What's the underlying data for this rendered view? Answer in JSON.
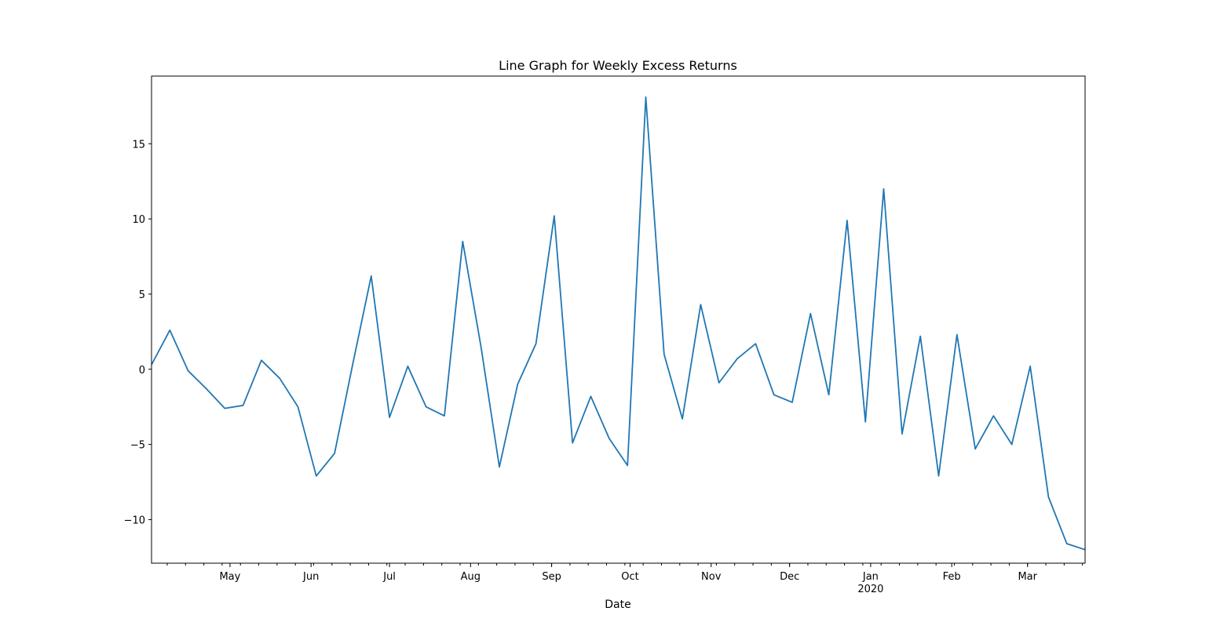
{
  "chart_data": {
    "type": "line",
    "title": "Line Graph for Weekly Excess Returns",
    "xlabel": "Date",
    "ylabel": "",
    "x_start": "2019-04-01",
    "x_end": "2020-03-23",
    "ylim": [
      -12.9,
      19.5
    ],
    "y_ticks": [
      -10,
      -5,
      0,
      5,
      10,
      15
    ],
    "x_ticks": [
      {
        "date": "2019-05-01",
        "label": "May"
      },
      {
        "date": "2019-06-01",
        "label": "Jun"
      },
      {
        "date": "2019-07-01",
        "label": "Jul"
      },
      {
        "date": "2019-08-01",
        "label": "Aug"
      },
      {
        "date": "2019-09-01",
        "label": "Sep"
      },
      {
        "date": "2019-10-01",
        "label": "Oct"
      },
      {
        "date": "2019-11-01",
        "label": "Nov"
      },
      {
        "date": "2019-12-01",
        "label": "Dec"
      },
      {
        "date": "2020-01-01",
        "label": "Jan",
        "sublabel": "2020"
      },
      {
        "date": "2020-02-01",
        "label": "Feb"
      },
      {
        "date": "2020-03-01",
        "label": "Mar"
      }
    ],
    "minor_tick_dates": [
      "2019-04-07",
      "2019-04-14",
      "2019-04-21",
      "2019-04-28",
      "2019-05-05",
      "2019-05-12",
      "2019-05-19",
      "2019-05-26",
      "2019-06-02",
      "2019-06-09",
      "2019-06-16",
      "2019-06-23",
      "2019-06-30",
      "2019-07-07",
      "2019-07-14",
      "2019-07-21",
      "2019-07-28",
      "2019-08-04",
      "2019-08-11",
      "2019-08-18",
      "2019-08-25",
      "2019-09-01",
      "2019-09-08",
      "2019-09-15",
      "2019-09-22",
      "2019-09-29",
      "2019-10-06",
      "2019-10-13",
      "2019-10-20",
      "2019-10-27",
      "2019-11-03",
      "2019-11-10",
      "2019-11-17",
      "2019-11-24",
      "2019-12-01",
      "2019-12-08",
      "2019-12-15",
      "2019-12-22",
      "2019-12-29",
      "2020-01-05",
      "2020-01-12",
      "2020-01-19",
      "2020-01-26",
      "2020-02-02",
      "2020-02-09",
      "2020-02-16",
      "2020-02-23",
      "2020-03-01",
      "2020-03-08",
      "2020-03-15",
      "2020-03-22"
    ],
    "grid": false,
    "color": "#1f77b4",
    "series": [
      {
        "dates": [
          "2019-04-01",
          "2019-04-08",
          "2019-04-15",
          "2019-04-22",
          "2019-04-29",
          "2019-05-06",
          "2019-05-13",
          "2019-05-20",
          "2019-05-27",
          "2019-06-03",
          "2019-06-10",
          "2019-06-17",
          "2019-06-24",
          "2019-07-01",
          "2019-07-08",
          "2019-07-15",
          "2019-07-22",
          "2019-07-29",
          "2019-08-05",
          "2019-08-12",
          "2019-08-19",
          "2019-08-26",
          "2019-09-02",
          "2019-09-09",
          "2019-09-16",
          "2019-09-23",
          "2019-09-30",
          "2019-10-07",
          "2019-10-14",
          "2019-10-21",
          "2019-10-28",
          "2019-11-04",
          "2019-11-11",
          "2019-11-18",
          "2019-11-25",
          "2019-12-02",
          "2019-12-09",
          "2019-12-16",
          "2019-12-23",
          "2019-12-30",
          "2020-01-06",
          "2020-01-13",
          "2020-01-20",
          "2020-01-27",
          "2020-02-03",
          "2020-02-10",
          "2020-02-17",
          "2020-02-24",
          "2020-03-02",
          "2020-03-09",
          "2020-03-16",
          "2020-03-23"
        ],
        "values": [
          0.3,
          2.6,
          -0.1,
          -1.3,
          -2.6,
          -2.4,
          0.6,
          -0.6,
          -2.5,
          -7.1,
          -5.6,
          0.4,
          6.2,
          -3.2,
          0.2,
          -2.5,
          -3.1,
          8.5,
          1.5,
          -6.5,
          -1.0,
          1.7,
          10.2,
          -4.9,
          -1.8,
          -4.6,
          -6.4,
          18.1,
          1.0,
          -3.3,
          4.3,
          -0.9,
          0.7,
          1.7,
          -1.7,
          -2.2,
          3.7,
          -1.7,
          9.9,
          -3.5,
          12.0,
          -4.3,
          2.2,
          -7.1,
          2.3,
          -5.3,
          -3.1,
          -5.0,
          0.2,
          -8.5,
          -11.6,
          -12.0
        ]
      }
    ]
  }
}
